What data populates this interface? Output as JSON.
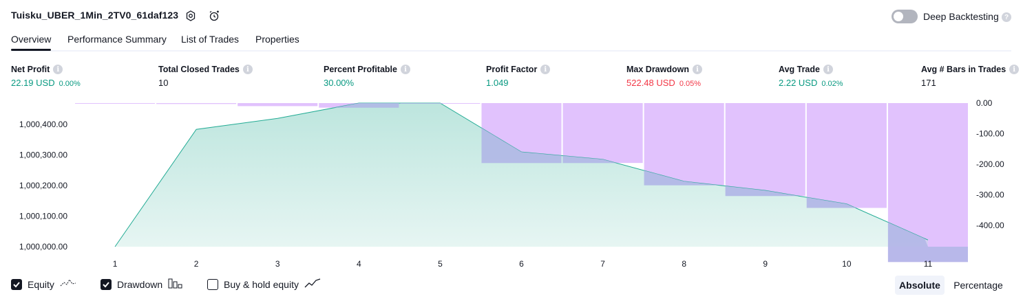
{
  "header": {
    "title": "Tuisku_UBER_1Min_2TV0_61daf123",
    "deep_backtesting_label": "Deep Backtesting",
    "deep_backtesting_on": false
  },
  "tabs": [
    {
      "label": "Overview",
      "active": true
    },
    {
      "label": "Performance Summary",
      "active": false
    },
    {
      "label": "List of Trades",
      "active": false
    },
    {
      "label": "Properties",
      "active": false
    }
  ],
  "metrics": [
    {
      "label": "Net Profit",
      "value": "22.19 USD",
      "pct": "0.00%",
      "color": "green"
    },
    {
      "label": "Total Closed Trades",
      "value": "10",
      "pct": "",
      "color": "dark"
    },
    {
      "label": "Percent Profitable",
      "value": "30.00%",
      "pct": "",
      "color": "green"
    },
    {
      "label": "Profit Factor",
      "value": "1.049",
      "pct": "",
      "color": "green"
    },
    {
      "label": "Max Drawdown",
      "value": "522.48 USD",
      "pct": "0.05%",
      "color": "red"
    },
    {
      "label": "Avg Trade",
      "value": "2.22 USD",
      "pct": "0.02%",
      "color": "green"
    },
    {
      "label": "Avg # Bars in Trades",
      "value": "171",
      "pct": "",
      "color": "dark"
    }
  ],
  "chart_data": {
    "type": "area",
    "x_categories": [
      1,
      2,
      3,
      4,
      5,
      6,
      7,
      8,
      9,
      10,
      11
    ],
    "series": [
      {
        "name": "Equity",
        "axis": "left",
        "values": [
          1000000,
          1000384,
          1000420,
          1000470,
          1000470,
          1000310,
          1000286,
          1000214,
          1000184,
          1000140,
          1000022
        ]
      },
      {
        "name": "Drawdown",
        "axis": "right",
        "values": [
          0,
          -3,
          -10,
          -15,
          -1,
          -196,
          -196,
          -269,
          -304,
          -343,
          -520
        ]
      }
    ],
    "left_axis": {
      "ticks": [
        "1,000,000.00",
        "1,000,100.00",
        "1,000,200.00",
        "1,000,300.00",
        "1,000,400.00"
      ],
      "range": [
        1000000,
        1000470
      ]
    },
    "right_axis": {
      "ticks": [
        "0.00",
        "-100.00",
        "-200.00",
        "-300.00",
        "-400.00"
      ],
      "range": [
        -470,
        0
      ]
    },
    "colors": {
      "equity_line": "#22ab94",
      "equity_fill": "#b9e4dc",
      "drawdown_fill": "#e1c2fd",
      "overlap_fill": "#b0b6e6"
    }
  },
  "legend": {
    "equity": {
      "label": "Equity",
      "checked": true
    },
    "drawdown": {
      "label": "Drawdown",
      "checked": true
    },
    "buy_hold": {
      "label": "Buy & hold equity",
      "checked": false
    }
  },
  "view_toggle": {
    "absolute": "Absolute",
    "percentage": "Percentage",
    "selected": "Absolute"
  }
}
